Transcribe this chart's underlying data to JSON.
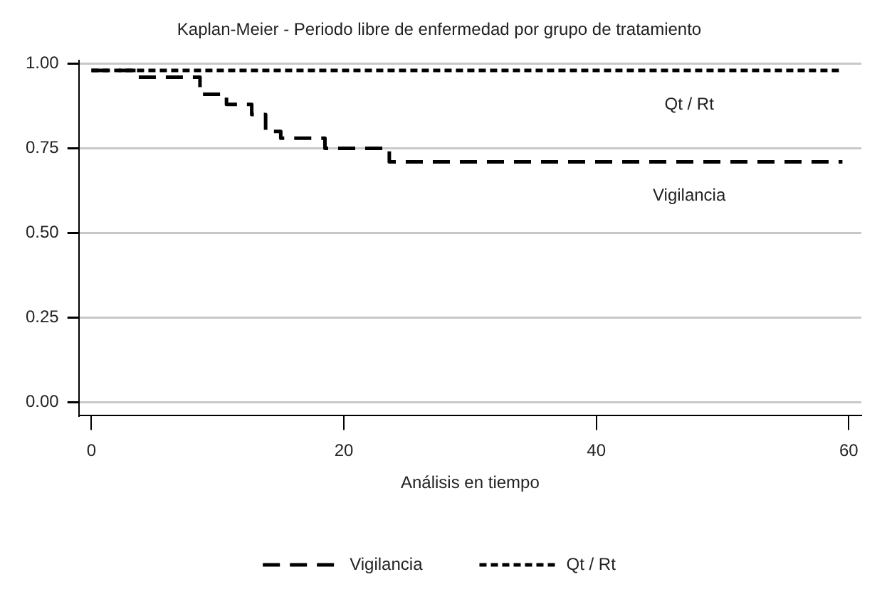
{
  "chart_data": {
    "type": "step",
    "title": "Kaplan-Meier - Periodo libre de enfermedad por grupo de tratamiento",
    "xlabel": "Análisis en tiempo",
    "series": [
      {
        "name": "Vigilancia",
        "color": "#000000",
        "line_style": "dashed",
        "x": [
          0,
          3.7,
          8.6,
          10.7,
          12.7,
          13.8,
          15,
          18.5,
          23.6,
          59.5
        ],
        "values": [
          0.98,
          0.96,
          0.91,
          0.88,
          0.85,
          0.8,
          0.78,
          0.75,
          0.71,
          0.71
        ]
      },
      {
        "name": "Qt / Rt",
        "color": "#000000",
        "line_style": "dotted",
        "x": [
          0,
          59.5
        ],
        "values": [
          0.98,
          0.98
        ]
      }
    ],
    "xlim": [
      -1,
      61
    ],
    "xticks": [
      0,
      20,
      40,
      60
    ],
    "ylim": [
      -0.04,
      1.01
    ],
    "yticks": [
      {
        "value": 0,
        "label": "0.00"
      },
      {
        "value": 0.25,
        "label": "0.25"
      },
      {
        "value": 0.5,
        "label": "0.50"
      },
      {
        "value": 0.75,
        "label": "0.75"
      },
      {
        "value": 1,
        "label": "1.00"
      }
    ],
    "grid": "y",
    "legend": "bottom"
  }
}
